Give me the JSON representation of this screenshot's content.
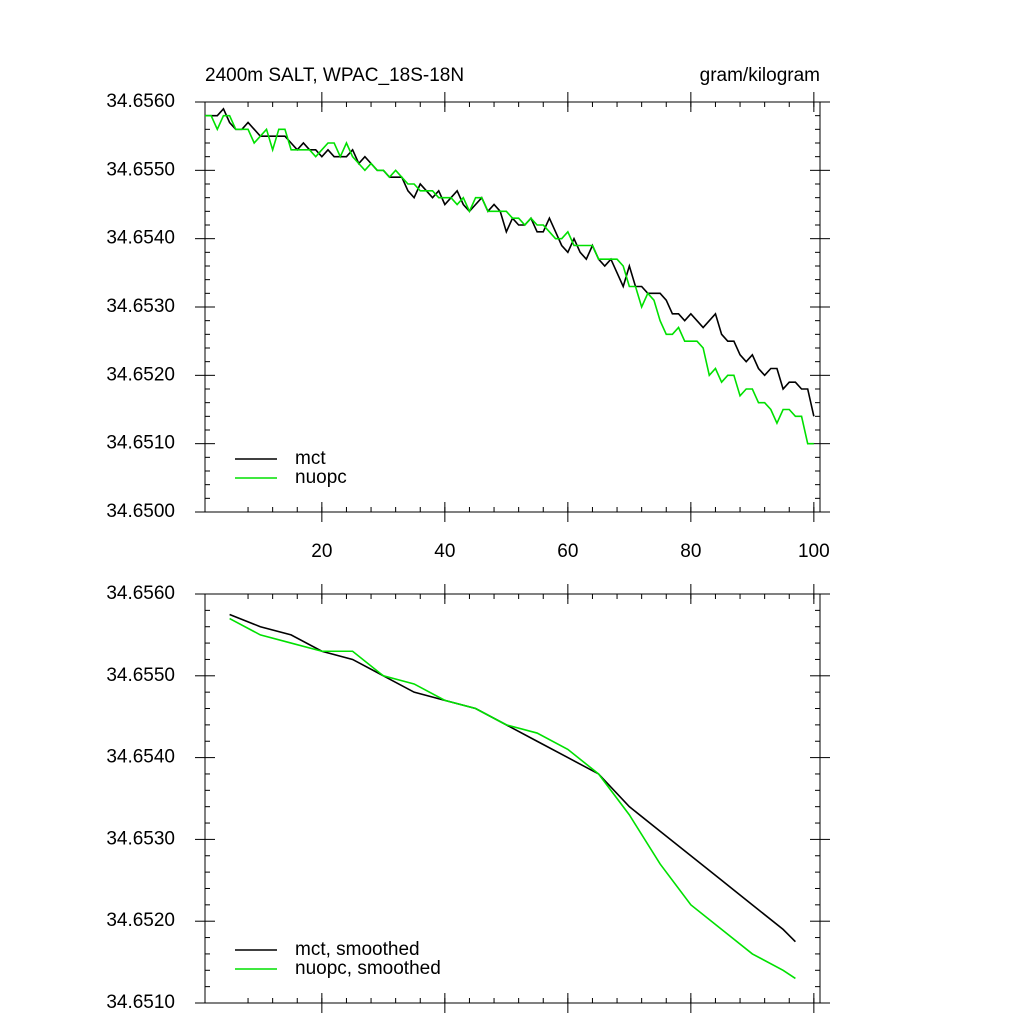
{
  "chart_data": [
    {
      "type": "line",
      "title": "2400m SALT, WPAC_18S-18N",
      "subtitle": "gram/kilogram",
      "x": [
        1,
        2,
        3,
        4,
        5,
        6,
        7,
        8,
        9,
        10,
        11,
        12,
        13,
        14,
        15,
        16,
        17,
        18,
        19,
        20,
        21,
        22,
        23,
        24,
        25,
        26,
        27,
        28,
        29,
        30,
        31,
        32,
        33,
        34,
        35,
        36,
        37,
        38,
        39,
        40,
        41,
        42,
        43,
        44,
        45,
        46,
        47,
        48,
        49,
        50,
        51,
        52,
        53,
        54,
        55,
        56,
        57,
        58,
        59,
        60,
        61,
        62,
        63,
        64,
        65,
        66,
        67,
        68,
        69,
        70,
        71,
        72,
        73,
        74,
        75,
        76,
        77,
        78,
        79,
        80,
        81,
        82,
        83,
        84,
        85,
        86,
        87,
        88,
        89,
        90,
        91,
        92,
        93,
        94,
        95,
        96,
        97,
        98,
        99,
        100
      ],
      "series": [
        {
          "name": "mct",
          "color": "#000000",
          "values": [
            34.6558,
            34.6558,
            34.6558,
            34.6559,
            34.6557,
            34.6556,
            34.6556,
            34.6557,
            34.6556,
            34.6555,
            34.6555,
            34.6555,
            34.6555,
            34.6555,
            34.6554,
            34.6553,
            34.6554,
            34.6553,
            34.6553,
            34.6552,
            34.6553,
            34.6552,
            34.6552,
            34.6552,
            34.6553,
            34.6551,
            34.6552,
            34.6551,
            34.655,
            34.655,
            34.6549,
            34.6549,
            34.6549,
            34.6547,
            34.6546,
            34.6548,
            34.6547,
            34.6546,
            34.6547,
            34.6545,
            34.6546,
            34.6547,
            34.6545,
            34.6544,
            34.6545,
            34.6546,
            34.6544,
            34.6545,
            34.6544,
            34.6541,
            34.6543,
            34.6542,
            34.6542,
            34.6543,
            34.6541,
            34.6541,
            34.6543,
            34.6541,
            34.6539,
            34.6538,
            34.654,
            34.6538,
            34.6537,
            34.6539,
            34.6537,
            34.6536,
            34.6537,
            34.6535,
            34.6533,
            34.6536,
            34.6533,
            34.6533,
            34.6532,
            34.6532,
            34.6532,
            34.6531,
            34.6529,
            34.6529,
            34.6528,
            34.6529,
            34.6528,
            34.6527,
            34.6528,
            34.6529,
            34.6526,
            34.6525,
            34.6525,
            34.6523,
            34.6522,
            34.6523,
            34.6521,
            34.652,
            34.6521,
            34.6521,
            34.6518,
            34.6519,
            34.6519,
            34.6518,
            34.6518,
            34.6514
          ]
        },
        {
          "name": "nuopc",
          "color": "#00e000",
          "values": [
            34.6558,
            34.6558,
            34.6556,
            34.6558,
            34.6558,
            34.6556,
            34.6556,
            34.6556,
            34.6554,
            34.6555,
            34.6556,
            34.6553,
            34.6556,
            34.6556,
            34.6553,
            34.6553,
            34.6553,
            34.6553,
            34.6552,
            34.6553,
            34.6554,
            34.6554,
            34.6552,
            34.6554,
            34.6552,
            34.6551,
            34.655,
            34.6551,
            34.655,
            34.655,
            34.6549,
            34.655,
            34.6549,
            34.6548,
            34.6548,
            34.6547,
            34.6547,
            34.6547,
            34.6546,
            34.6546,
            34.6546,
            34.6545,
            34.6546,
            34.6544,
            34.6546,
            34.6546,
            34.6544,
            34.6544,
            34.6544,
            34.6544,
            34.6543,
            34.6543,
            34.6542,
            34.6543,
            34.6542,
            34.6542,
            34.6541,
            34.654,
            34.654,
            34.6541,
            34.6539,
            34.6539,
            34.6539,
            34.6539,
            34.6537,
            34.6537,
            34.6537,
            34.6537,
            34.6536,
            34.6533,
            34.6533,
            34.653,
            34.6532,
            34.6531,
            34.6528,
            34.6526,
            34.6526,
            34.6527,
            34.6525,
            34.6525,
            34.6525,
            34.6524,
            34.652,
            34.6521,
            34.6519,
            34.652,
            34.652,
            34.6517,
            34.6518,
            34.6518,
            34.6516,
            34.6516,
            34.6515,
            34.6513,
            34.6515,
            34.6515,
            34.6514,
            34.6514,
            34.651,
            34.651
          ]
        }
      ],
      "xlim": [
        1,
        101
      ],
      "xticks": [
        20,
        40,
        60,
        80,
        100
      ],
      "ylim": [
        34.65,
        34.656
      ],
      "yticks": [
        {
          "value": 34.65,
          "label": "34.6500"
        },
        {
          "value": 34.651,
          "label": "34.6510"
        },
        {
          "value": 34.652,
          "label": "34.6520"
        },
        {
          "value": 34.653,
          "label": "34.6530"
        },
        {
          "value": 34.654,
          "label": "34.6540"
        },
        {
          "value": 34.655,
          "label": "34.6550"
        },
        {
          "value": 34.656,
          "label": "34.6560"
        }
      ],
      "legend": "lower left"
    },
    {
      "type": "line",
      "x": [
        5,
        10,
        15,
        20,
        25,
        30,
        35,
        40,
        45,
        50,
        55,
        60,
        65,
        70,
        75,
        80,
        85,
        90,
        95,
        97
      ],
      "series": [
        {
          "name": "mct, smoothed",
          "color": "#000000",
          "values": [
            34.65575,
            34.6556,
            34.6555,
            34.6553,
            34.6552,
            34.655,
            34.6548,
            34.6547,
            34.6546,
            34.6544,
            34.6542,
            34.654,
            34.6538,
            34.6534,
            34.6531,
            34.6528,
            34.6525,
            34.6522,
            34.6519,
            34.65175
          ]
        },
        {
          "name": "nuopc, smoothed",
          "color": "#00e000",
          "values": [
            34.6557,
            34.6555,
            34.6554,
            34.6553,
            34.6553,
            34.655,
            34.6549,
            34.6547,
            34.6546,
            34.6544,
            34.6543,
            34.6541,
            34.6538,
            34.6533,
            34.6527,
            34.6522,
            34.6519,
            34.6516,
            34.6514,
            34.6513
          ]
        }
      ],
      "xlim": [
        1,
        101
      ],
      "xticks": [
        20,
        40,
        60,
        80,
        100
      ],
      "ylim": [
        34.651,
        34.656
      ],
      "yticks": [
        {
          "value": 34.651,
          "label": "34.6510"
        },
        {
          "value": 34.652,
          "label": "34.6520"
        },
        {
          "value": 34.653,
          "label": "34.6530"
        },
        {
          "value": 34.654,
          "label": "34.6540"
        },
        {
          "value": 34.655,
          "label": "34.6550"
        },
        {
          "value": 34.656,
          "label": "34.6560"
        }
      ],
      "legend": "lower left"
    }
  ]
}
